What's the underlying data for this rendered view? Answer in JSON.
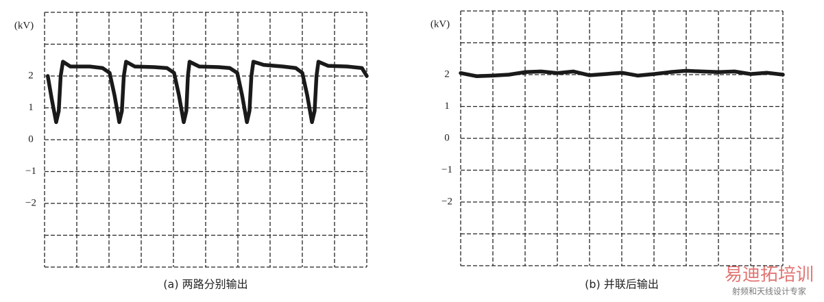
{
  "chart_data": [
    {
      "type": "line",
      "caption": "(a) 两路分别输出",
      "ylabel": "(kV)",
      "xlim": [
        0,
        10
      ],
      "ylim": [
        -4,
        4
      ],
      "yticks": [
        {
          "value": 2,
          "label": "2"
        },
        {
          "value": 1,
          "label": "1"
        },
        {
          "value": 0,
          "label": "0"
        },
        {
          "value": -1,
          "label": "−1"
        },
        {
          "value": -2,
          "label": "−2"
        }
      ],
      "xgrid": [
        0,
        1,
        2,
        3,
        4,
        5,
        6,
        7,
        8,
        9,
        10
      ],
      "ygrid": [
        -4,
        -3,
        -2,
        -1,
        0,
        1,
        2,
        3,
        4
      ],
      "grid": true,
      "color": "#1a1a1a",
      "x": [
        0.1,
        0.22,
        0.36,
        0.44,
        0.5,
        0.57,
        0.8,
        1.4,
        1.8,
        2.02,
        2.17,
        2.32,
        2.4,
        2.46,
        2.53,
        2.8,
        3.4,
        3.8,
        4.02,
        4.17,
        4.32,
        4.4,
        4.45,
        4.5,
        4.8,
        5.4,
        5.75,
        5.98,
        6.13,
        6.28,
        6.36,
        6.42,
        6.48,
        6.8,
        7.4,
        7.8,
        8.0,
        8.15,
        8.3,
        8.38,
        8.44,
        8.5,
        8.8,
        9.4,
        9.85,
        10.0
      ],
      "values": [
        2.0,
        1.3,
        0.55,
        0.9,
        2.0,
        2.45,
        2.3,
        2.3,
        2.25,
        2.1,
        1.4,
        0.55,
        0.9,
        2.0,
        2.45,
        2.3,
        2.28,
        2.25,
        2.1,
        1.4,
        0.55,
        0.9,
        2.0,
        2.45,
        2.3,
        2.28,
        2.25,
        2.1,
        1.4,
        0.55,
        0.9,
        2.0,
        2.45,
        2.35,
        2.3,
        2.25,
        2.1,
        1.4,
        0.55,
        0.9,
        2.0,
        2.45,
        2.32,
        2.3,
        2.25,
        2.0
      ]
    },
    {
      "type": "line",
      "caption": "(b) 并联后输出",
      "ylabel": "(kV)",
      "xlim": [
        0,
        10
      ],
      "ylim": [
        -4,
        4
      ],
      "yticks": [
        {
          "value": 2,
          "label": "2"
        },
        {
          "value": 1,
          "label": "1"
        },
        {
          "value": 0,
          "label": "0"
        },
        {
          "value": -1,
          "label": "−1"
        },
        {
          "value": -2,
          "label": "−2"
        }
      ],
      "xgrid": [
        0,
        1,
        2,
        3,
        4,
        5,
        6,
        7,
        8,
        9,
        10
      ],
      "ygrid": [
        -4,
        -3,
        -2,
        -1,
        0,
        1,
        2,
        3,
        4
      ],
      "grid": true,
      "color": "#1a1a1a",
      "x": [
        0,
        0.5,
        1,
        1.5,
        2,
        2.5,
        3,
        3.5,
        4,
        4.5,
        5,
        5.5,
        6,
        6.5,
        7,
        7.5,
        8,
        8.5,
        9,
        9.5,
        10
      ],
      "values": [
        2.05,
        1.95,
        1.97,
        2.0,
        2.08,
        2.1,
        2.05,
        2.1,
        1.98,
        2.02,
        2.06,
        1.97,
        2.02,
        2.08,
        2.12,
        2.1,
        2.08,
        2.1,
        2.02,
        2.06,
        2.0
      ]
    }
  ],
  "watermark": {
    "title": "易迪拓培训",
    "subtitle": "射频和天线设计专家"
  }
}
